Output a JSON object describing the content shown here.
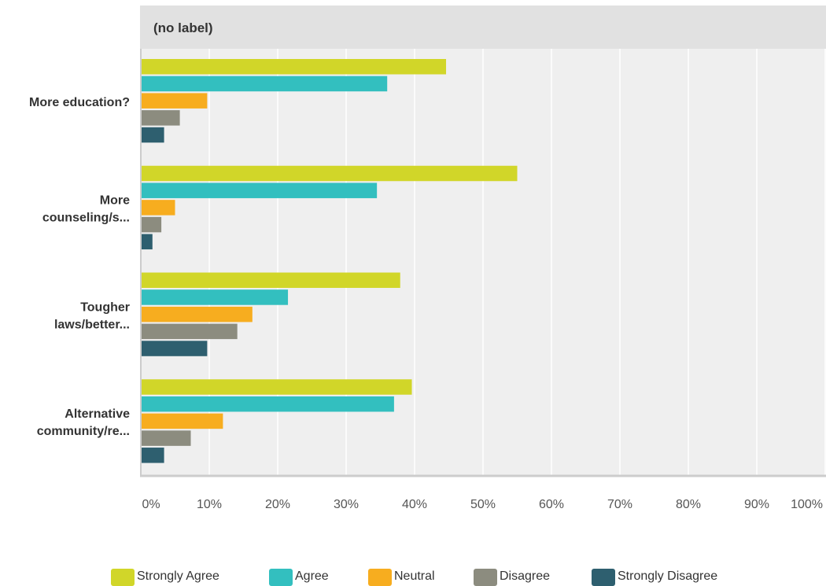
{
  "chart_data": {
    "type": "bar",
    "orientation": "horizontal",
    "title": "(no label)",
    "categories": [
      [
        "More education?"
      ],
      [
        "More",
        "counseling/s..."
      ],
      [
        "Tougher",
        "laws/better..."
      ],
      [
        "Alternative",
        "community/re..."
      ]
    ],
    "xlim": [
      0,
      100
    ],
    "x_ticks": [
      "0%",
      "10%",
      "20%",
      "30%",
      "40%",
      "50%",
      "60%",
      "70%",
      "80%",
      "90%",
      "100%"
    ],
    "grid": true,
    "legend_position": "bottom",
    "series": [
      {
        "name": "Strongly Agree",
        "color": "#d1d629",
        "values": [
          44.6,
          55.0,
          37.9,
          39.6
        ]
      },
      {
        "name": "Agree",
        "color": "#33bfbf",
        "values": [
          36.0,
          34.5,
          21.5,
          37.0
        ]
      },
      {
        "name": "Neutral",
        "color": "#f7ad1f",
        "values": [
          9.7,
          5.0,
          16.3,
          12.0
        ]
      },
      {
        "name": "Disagree",
        "color": "#8c8c7f",
        "values": [
          5.7,
          3.0,
          14.1,
          7.3
        ]
      },
      {
        "name": "Strongly Disagree",
        "color": "#2e5f6f",
        "values": [
          3.4,
          1.7,
          9.7,
          3.4
        ]
      }
    ]
  }
}
